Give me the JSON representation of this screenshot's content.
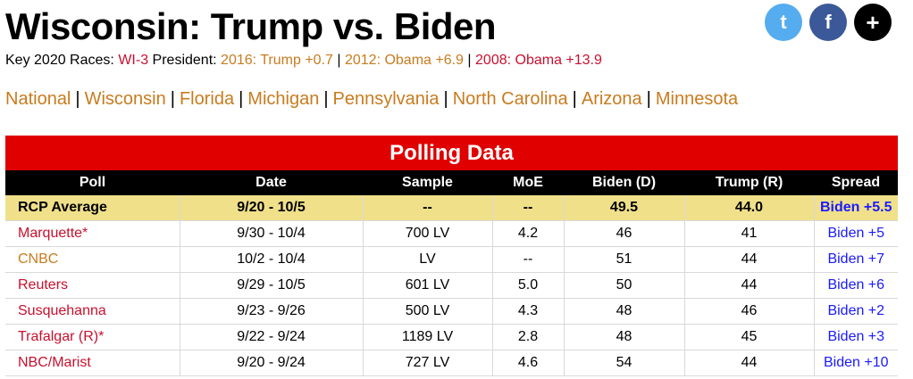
{
  "title": "Wisconsin: Trump vs. Biden",
  "share": {
    "twitter": "t",
    "facebook": "f",
    "more": "+"
  },
  "key_races": {
    "label": "Key 2020 Races:",
    "race": "WI-3",
    "president_label": "President:",
    "results": [
      "2016: Trump +0.7",
      "2012: Obama +6.9",
      "2008: Obama +13.9"
    ],
    "separator": "|"
  },
  "nav": {
    "separator": "|",
    "links": [
      "National",
      "Wisconsin",
      "Florida",
      "Michigan",
      "Pennsylvania",
      "North Carolina",
      "Arizona",
      "Minnesota"
    ]
  },
  "polling": {
    "title": "Polling Data",
    "columns": [
      "Poll",
      "Date",
      "Sample",
      "MoE",
      "Biden (D)",
      "Trump (R)",
      "Spread"
    ],
    "average": {
      "poll": "RCP Average",
      "date": "9/20 - 10/5",
      "sample": "--",
      "moe": "--",
      "biden": "49.5",
      "trump": "44.0",
      "spread": "Biden +5.5"
    },
    "rows": [
      {
        "poll": "Marquette*",
        "date": "9/30 - 10/4",
        "sample": "700 LV",
        "moe": "4.2",
        "biden": "46",
        "trump": "41",
        "spread": "Biden +5"
      },
      {
        "poll": "CNBC",
        "date": "10/2 - 10/4",
        "sample": "LV",
        "moe": "--",
        "biden": "51",
        "trump": "44",
        "spread": "Biden +7"
      },
      {
        "poll": "Reuters",
        "date": "9/29 - 10/5",
        "sample": "601 LV",
        "moe": "5.0",
        "biden": "50",
        "trump": "44",
        "spread": "Biden +6"
      },
      {
        "poll": "Susquehanna",
        "date": "9/23 - 9/26",
        "sample": "500 LV",
        "moe": "4.3",
        "biden": "48",
        "trump": "46",
        "spread": "Biden +2"
      },
      {
        "poll": "Trafalgar (R)*",
        "date": "9/22 - 9/24",
        "sample": "1189 LV",
        "moe": "2.8",
        "biden": "48",
        "trump": "45",
        "spread": "Biden +3"
      },
      {
        "poll": "NBC/Marist",
        "date": "9/20 - 9/24",
        "sample": "727 LV",
        "moe": "4.6",
        "biden": "54",
        "trump": "44",
        "spread": "Biden +10"
      }
    ]
  }
}
